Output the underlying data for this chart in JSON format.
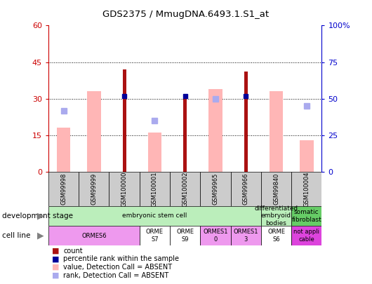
{
  "title": "GDS2375 / MmugDNA.6493.1.S1_at",
  "samples": [
    "GSM99998",
    "GSM99999",
    "GSM100000",
    "GSM100001",
    "GSM100002",
    "GSM99965",
    "GSM99966",
    "GSM99840",
    "GSM100004"
  ],
  "count_values": [
    null,
    null,
    42,
    null,
    31,
    null,
    41,
    null,
    null
  ],
  "percentile_rank_left": [
    null,
    null,
    31,
    null,
    31,
    null,
    31,
    null,
    null
  ],
  "absent_value": [
    18,
    33,
    null,
    16,
    null,
    34,
    null,
    33,
    13
  ],
  "absent_rank_left": [
    25,
    null,
    null,
    21,
    null,
    30,
    null,
    null,
    27
  ],
  "ylim_left": [
    0,
    60
  ],
  "ylim_right": [
    0,
    100
  ],
  "yticks_left": [
    0,
    15,
    30,
    45,
    60
  ],
  "ytick_labels_right": [
    "0",
    "25",
    "50",
    "75",
    "100"
  ],
  "bar_color_dark_red": "#aa1111",
  "bar_color_pink": "#ffb6b6",
  "bar_color_dark_blue": "#000099",
  "bar_color_light_blue": "#aaaaee",
  "axis_color_left": "#cc0000",
  "axis_color_right": "#0000cc",
  "dev_stage_groups": [
    {
      "label": "embryonic stem cell",
      "start": 0,
      "end": 7,
      "color": "#bbeebb"
    },
    {
      "label": "differentiated\nembryoid\nbodies",
      "start": 7,
      "end": 8,
      "color": "#bbeebb"
    },
    {
      "label": "somatic\nfibroblast",
      "start": 8,
      "end": 9,
      "color": "#66cc66"
    }
  ],
  "cell_line_groups": [
    {
      "label": "ORMES6",
      "start": 0,
      "end": 3,
      "color": "#ee99ee"
    },
    {
      "label": "ORME\nS7",
      "start": 3,
      "end": 4,
      "color": "#ffffff"
    },
    {
      "label": "ORME\nS9",
      "start": 4,
      "end": 5,
      "color": "#ffffff"
    },
    {
      "label": "ORMES1\n0",
      "start": 5,
      "end": 6,
      "color": "#ee99ee"
    },
    {
      "label": "ORMES1\n3",
      "start": 6,
      "end": 7,
      "color": "#ee99ee"
    },
    {
      "label": "ORME\nS6",
      "start": 7,
      "end": 8,
      "color": "#ffffff"
    },
    {
      "label": "not appli\ncable",
      "start": 8,
      "end": 9,
      "color": "#dd44dd"
    }
  ]
}
